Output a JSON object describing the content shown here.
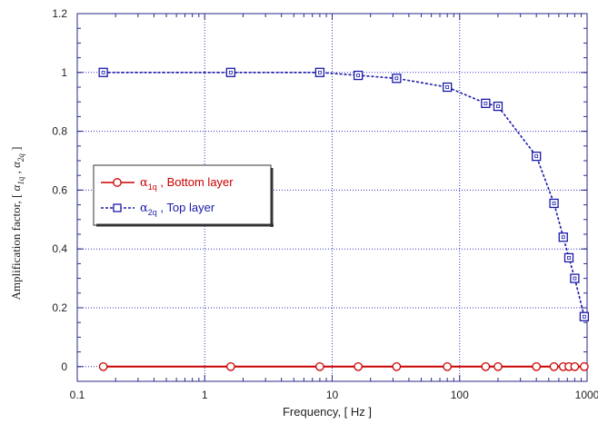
{
  "chart_data": {
    "type": "line",
    "x_scale": "log",
    "xlim": [
      0.1,
      1000
    ],
    "ylim": [
      -0.05,
      1.2
    ],
    "x_ticks": [
      "0.1",
      "1",
      "10",
      "100",
      "1000"
    ],
    "y_ticks": [
      "0",
      "0.2",
      "0.4",
      "0.6",
      "0.8",
      "1",
      "1.2"
    ],
    "xlabel": "Frequency, [ Hz ]",
    "ylabel": {
      "prefix": "Amplification factor, [ ",
      "sym1": "α",
      "sub1": "1q",
      "sep": " , ",
      "sym2": "α",
      "sub2": "2q",
      "suffix": " ]"
    },
    "grid": true,
    "legend_position": "center-left",
    "series": [
      {
        "legend_symbol": "α",
        "legend_sub": "1q",
        "legend_text": " , Bottom layer",
        "color": "#cc0000",
        "marker": "circle",
        "line_style": "solid",
        "x": [
          0.16,
          1.6,
          8,
          16,
          32,
          80,
          160,
          200,
          400,
          550,
          650,
          720,
          800,
          950
        ],
        "y": [
          0,
          0,
          0,
          0,
          0,
          0,
          0,
          0,
          0,
          0,
          0,
          0,
          0,
          0
        ]
      },
      {
        "legend_symbol": "α",
        "legend_sub": "2q",
        "legend_text": " , Top layer",
        "color": "#1a1aa8",
        "marker": "square",
        "line_style": "dashed",
        "x": [
          0.16,
          1.6,
          8,
          16,
          32,
          80,
          160,
          200,
          400,
          550,
          650,
          720,
          800,
          950
        ],
        "y": [
          1.0,
          1.0,
          1.0,
          0.99,
          0.98,
          0.95,
          0.895,
          0.885,
          0.715,
          0.555,
          0.44,
          0.37,
          0.3,
          0.17
        ]
      }
    ]
  }
}
